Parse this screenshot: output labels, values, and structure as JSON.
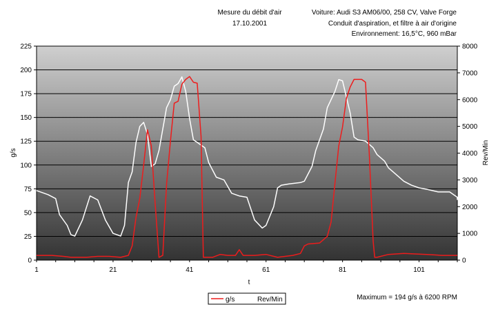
{
  "header": {
    "title": "Mesure du débit d'air",
    "date": "17.10.2001",
    "vehicle": "Voiture: Audi S3 AM06/00, 258 CV, Valve Forge",
    "intake": "Conduit d'aspiration, et  filtre à air d'origine",
    "environment": "Environnement: 16,5°C, 960 mBar"
  },
  "footer": {
    "maximum": "Maximum = 194 g/s à 6200 RPM"
  },
  "chart_data": {
    "type": "line",
    "xlabel": "t",
    "ylabel": "g/s",
    "y2label": "Rev/Min",
    "ylim": [
      0,
      225
    ],
    "y2lim": [
      0,
      8000
    ],
    "xlim": [
      1,
      111
    ],
    "yticks": [
      "0",
      "25",
      "50",
      "75",
      "100",
      "125",
      "150",
      "175",
      "200",
      "225"
    ],
    "y2ticks": [
      "0",
      "1000",
      "2000",
      "3000",
      "4000",
      "5000",
      "6000",
      "7000",
      "8000"
    ],
    "xticks": [
      "1",
      "21",
      "41",
      "61",
      "81",
      "101"
    ],
    "colors": {
      "plot_top": "#cfcfcf",
      "plot_bottom": "#333333",
      "gs": "#ee1c1c",
      "rpm": "#ffffff"
    },
    "legend": {
      "placement": "bottom-center",
      "entries": [
        "g/s",
        "Rev/Min"
      ]
    },
    "series": [
      {
        "name": "g/s",
        "axis": "left",
        "points": [
          [
            1,
            5
          ],
          [
            5,
            5
          ],
          [
            8,
            4
          ],
          [
            10,
            3
          ],
          [
            14,
            3
          ],
          [
            17,
            4
          ],
          [
            20,
            4
          ],
          [
            23,
            3
          ],
          [
            25,
            5
          ],
          [
            26,
            15
          ],
          [
            27,
            45
          ],
          [
            28,
            65
          ],
          [
            29,
            100
          ],
          [
            30,
            137
          ],
          [
            31,
            120
          ],
          [
            32,
            60
          ],
          [
            33,
            3
          ],
          [
            34,
            5
          ],
          [
            35,
            80
          ],
          [
            36,
            125
          ],
          [
            37,
            165
          ],
          [
            38,
            167
          ],
          [
            39,
            185
          ],
          [
            40,
            190
          ],
          [
            41,
            193
          ],
          [
            42,
            187
          ],
          [
            43,
            186
          ],
          [
            44,
            130
          ],
          [
            44.6,
            3
          ],
          [
            45,
            3
          ],
          [
            47,
            3
          ],
          [
            49,
            6
          ],
          [
            51,
            5
          ],
          [
            53,
            5
          ],
          [
            54,
            11
          ],
          [
            55,
            5
          ],
          [
            58,
            5
          ],
          [
            61,
            6
          ],
          [
            64,
            3
          ],
          [
            68,
            5
          ],
          [
            70,
            7
          ],
          [
            71,
            15
          ],
          [
            72,
            17
          ],
          [
            75,
            18
          ],
          [
            77,
            25
          ],
          [
            78,
            40
          ],
          [
            79,
            80
          ],
          [
            80,
            120
          ],
          [
            81,
            140
          ],
          [
            82,
            170
          ],
          [
            83,
            182
          ],
          [
            84,
            190
          ],
          [
            86,
            190
          ],
          [
            87,
            187
          ],
          [
            88,
            110
          ],
          [
            89,
            20
          ],
          [
            89.4,
            3
          ],
          [
            90,
            3
          ],
          [
            93,
            6
          ],
          [
            97,
            7
          ],
          [
            103,
            6
          ],
          [
            107,
            5
          ],
          [
            111,
            5
          ]
        ]
      },
      {
        "name": "Rev/Min",
        "axis": "right",
        "points": [
          [
            1,
            2600
          ],
          [
            4,
            2450
          ],
          [
            6,
            2300
          ],
          [
            7,
            1700
          ],
          [
            9,
            1300
          ],
          [
            10,
            950
          ],
          [
            11,
            900
          ],
          [
            13,
            1500
          ],
          [
            15,
            2400
          ],
          [
            17,
            2250
          ],
          [
            19,
            1500
          ],
          [
            21,
            1000
          ],
          [
            23,
            900
          ],
          [
            24,
            1300
          ],
          [
            25,
            2900
          ],
          [
            26,
            3300
          ],
          [
            27,
            4400
          ],
          [
            28,
            5000
          ],
          [
            29,
            5150
          ],
          [
            30,
            4700
          ],
          [
            31,
            3500
          ],
          [
            32,
            3600
          ],
          [
            33,
            4100
          ],
          [
            34,
            4900
          ],
          [
            35,
            5700
          ],
          [
            36,
            6000
          ],
          [
            37,
            6500
          ],
          [
            38,
            6600
          ],
          [
            39,
            6850
          ],
          [
            40,
            6300
          ],
          [
            41,
            5300
          ],
          [
            42,
            4500
          ],
          [
            43,
            4400
          ],
          [
            45,
            4200
          ],
          [
            46,
            3650
          ],
          [
            48,
            3100
          ],
          [
            50,
            3000
          ],
          [
            52,
            2500
          ],
          [
            54,
            2400
          ],
          [
            56,
            2350
          ],
          [
            58,
            1500
          ],
          [
            60,
            1200
          ],
          [
            61,
            1300
          ],
          [
            63,
            2000
          ],
          [
            64,
            2700
          ],
          [
            65,
            2800
          ],
          [
            67,
            2850
          ],
          [
            70,
            2900
          ],
          [
            71,
            2950
          ],
          [
            73,
            3500
          ],
          [
            74,
            4100
          ],
          [
            76,
            4900
          ],
          [
            77,
            5700
          ],
          [
            79,
            6300
          ],
          [
            80,
            6750
          ],
          [
            81,
            6700
          ],
          [
            83,
            5500
          ],
          [
            84,
            4600
          ],
          [
            85,
            4500
          ],
          [
            87,
            4450
          ],
          [
            89,
            4200
          ],
          [
            90,
            3950
          ],
          [
            92,
            3700
          ],
          [
            93,
            3450
          ],
          [
            95,
            3200
          ],
          [
            97,
            2950
          ],
          [
            99,
            2800
          ],
          [
            101,
            2700
          ],
          [
            103,
            2650
          ],
          [
            106,
            2550
          ],
          [
            109,
            2550
          ],
          [
            111,
            2350
          ],
          [
            112,
            2250
          ]
        ]
      }
    ]
  }
}
